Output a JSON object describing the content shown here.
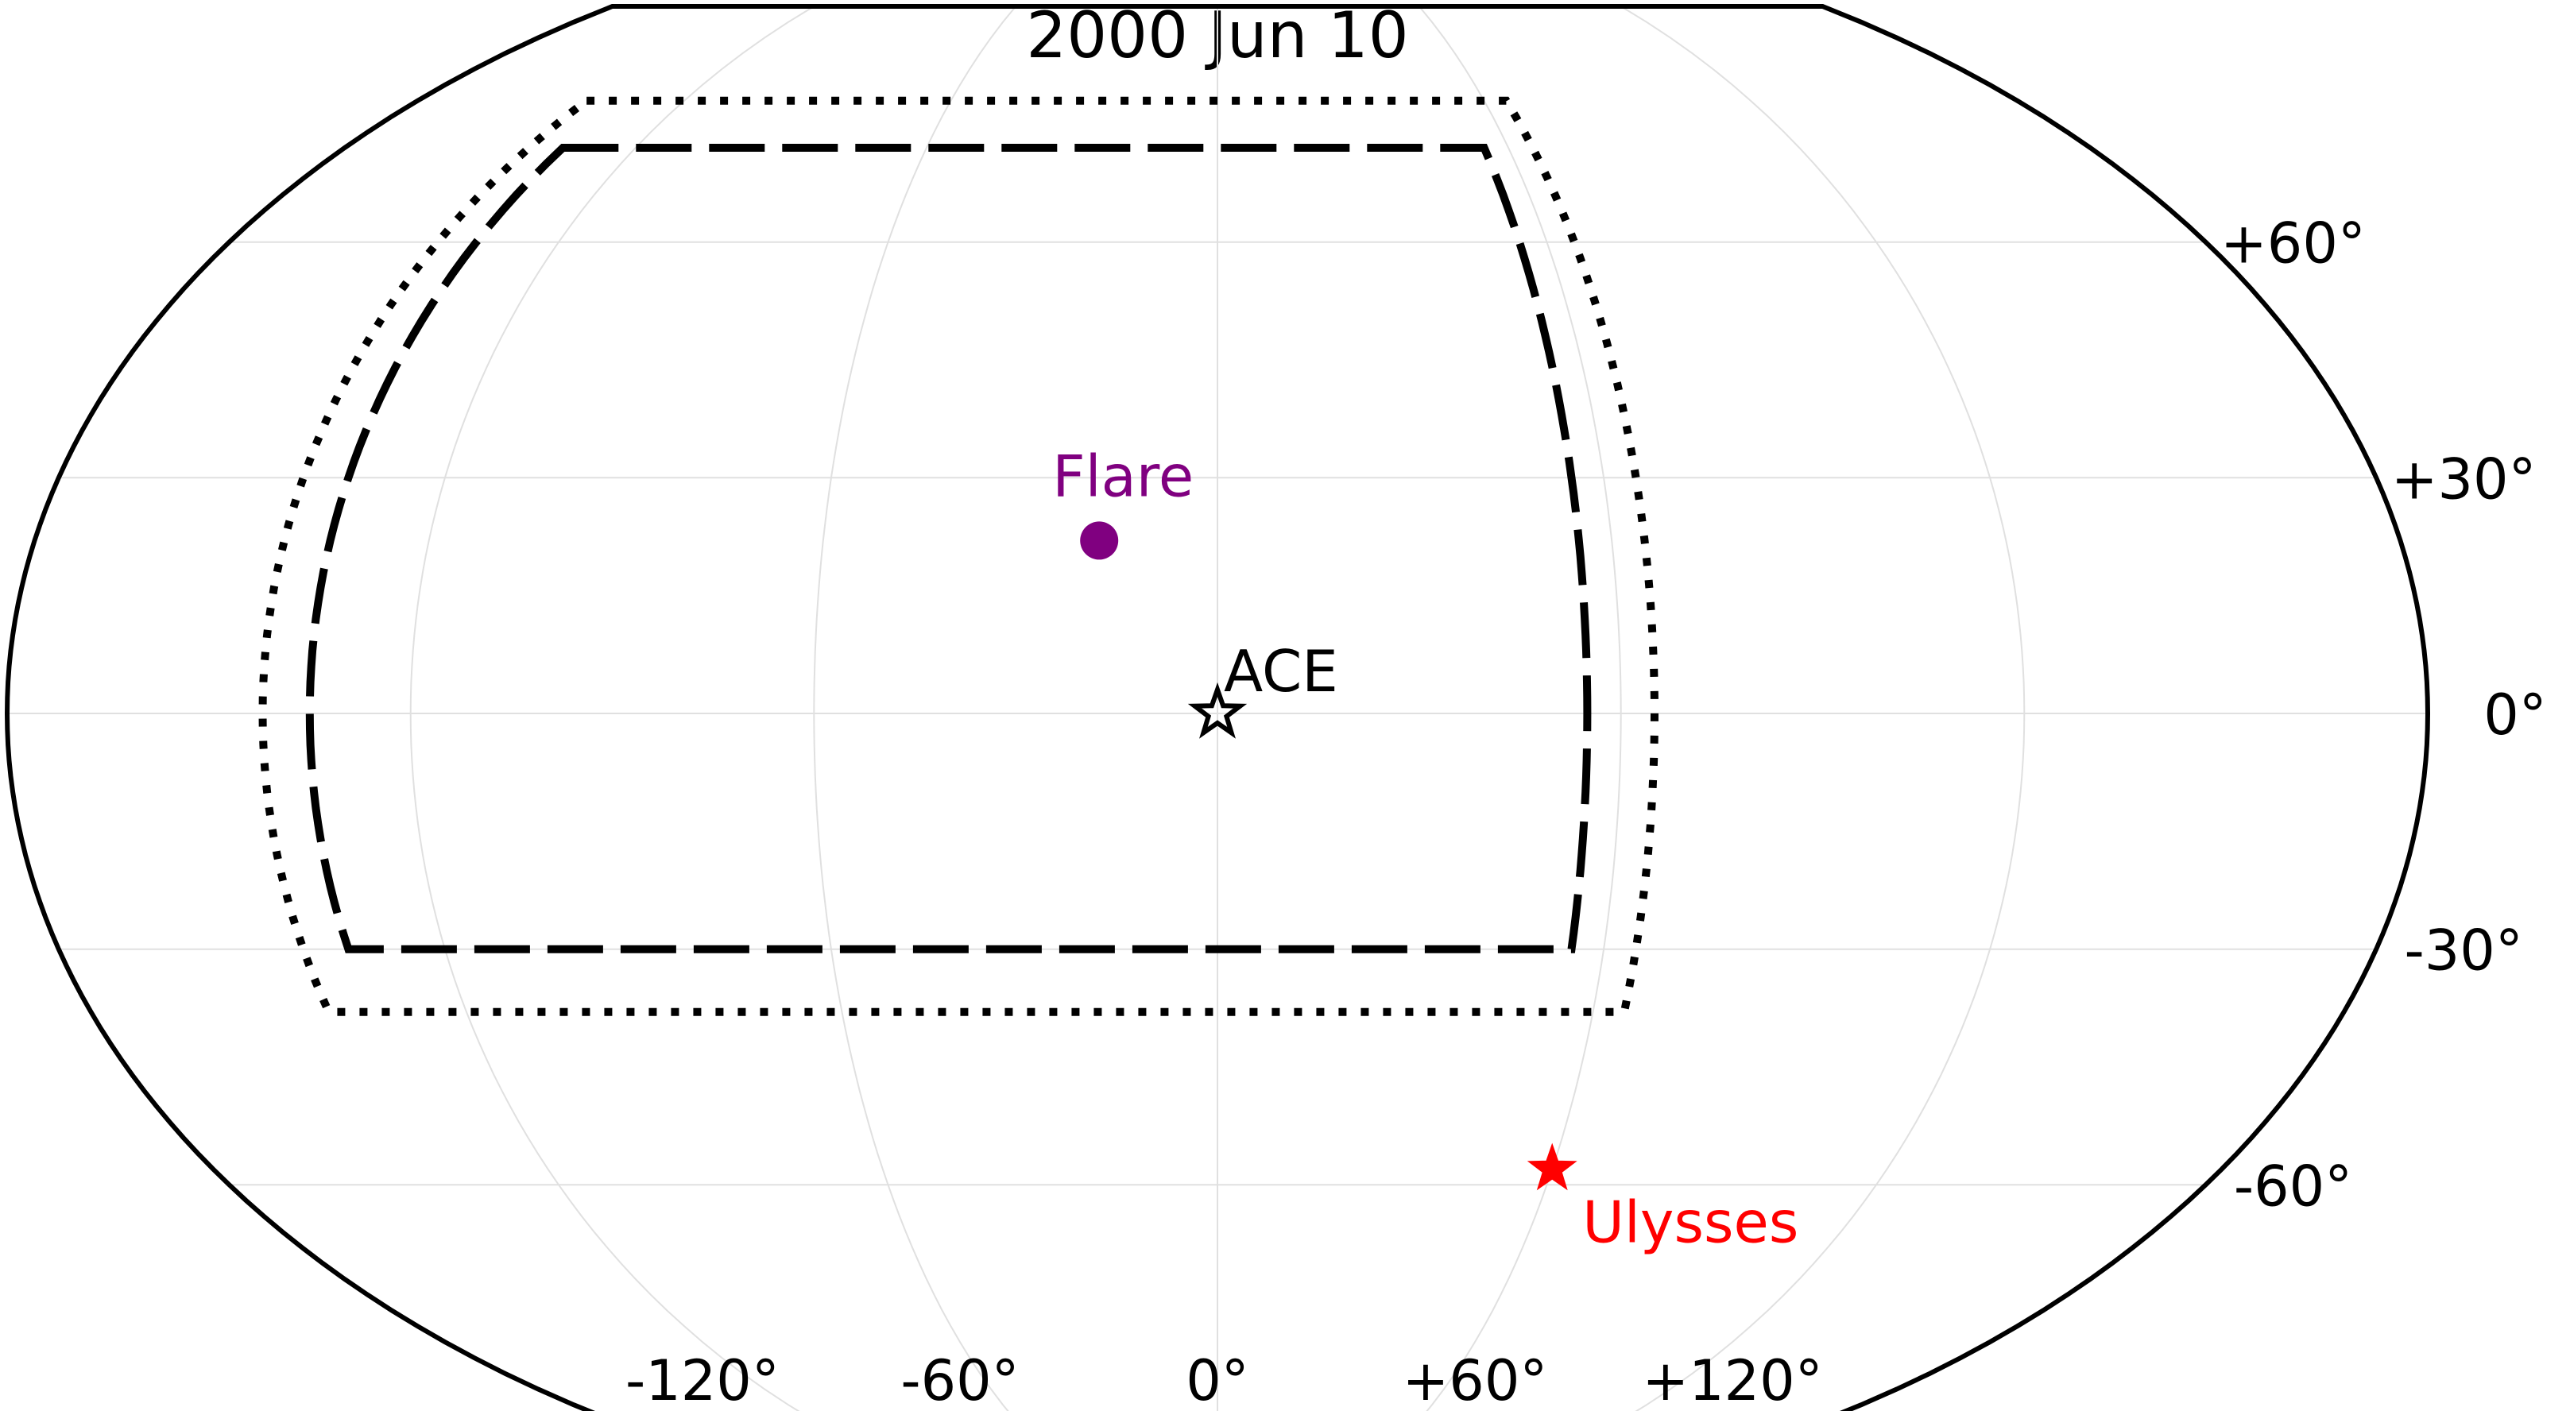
{
  "chart_data": {
    "type": "scatter",
    "title": "2000 Jun 10",
    "projection": "kavrayskiy-vii",
    "xlabel": "",
    "ylabel": "",
    "xlim": [
      -180,
      180
    ],
    "ylim": [
      -90,
      90
    ],
    "grid": true,
    "lon_ticks": [
      {
        "value": -120,
        "label": "-120°"
      },
      {
        "value": -60,
        "label": "-60°"
      },
      {
        "value": 0,
        "label": "0°"
      },
      {
        "value": 60,
        "label": "+60°"
      },
      {
        "value": 120,
        "label": "+120°"
      }
    ],
    "lat_ticks": [
      {
        "value": 60,
        "label": "+60°"
      },
      {
        "value": 30,
        "label": "+30°"
      },
      {
        "value": 0,
        "label": "0°"
      },
      {
        "value": -30,
        "label": "-30°"
      },
      {
        "value": -60,
        "label": "-60°"
      }
    ],
    "points": [
      {
        "label": "Flare",
        "lon": -18,
        "lat": 22,
        "marker": "circle",
        "color": "#800080"
      },
      {
        "label": "ACE",
        "lon": 0,
        "lat": 0,
        "marker": "star",
        "color": "#000000"
      },
      {
        "label": "Ulysses",
        "lon": 60,
        "lat": -58,
        "marker": "star",
        "color": "#ff0000"
      }
    ],
    "regions": [
      {
        "style": "dashed",
        "lon_range": [
          -135,
          55
        ],
        "lat_range": [
          -30,
          72
        ],
        "color": "#000000"
      },
      {
        "style": "dotted",
        "lon_range": [
          -142,
          65
        ],
        "lat_range": [
          -38,
          78
        ],
        "color": "#000000"
      }
    ]
  }
}
